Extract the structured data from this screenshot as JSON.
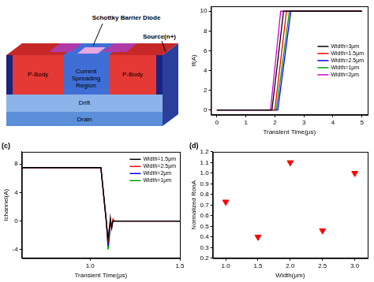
{
  "diagram": {
    "callouts": [
      "Schottky Barrier Diode",
      "Source(n+)"
    ],
    "regions": [
      "P-Body",
      "Current Spreading Region",
      "P-Body"
    ],
    "layers": [
      "Drift",
      "Drain"
    ]
  },
  "chart_data": [
    {
      "type": "line",
      "x_label": "Transient Time(μs)",
      "y_label": "If(A)",
      "xlim": [
        -0.2,
        5.2
      ],
      "xticks": [
        0,
        1,
        2,
        3,
        4,
        5
      ],
      "ylim": [
        -0.5,
        10.5
      ],
      "yticks": [
        0,
        2,
        4,
        6,
        8,
        10
      ],
      "grid": false,
      "legend": "center right",
      "series": [
        {
          "name": "Width=3μm",
          "color": "#000000",
          "x": [
            0,
            1.9,
            2.3,
            5
          ],
          "values": [
            0,
            0,
            10,
            10
          ]
        },
        {
          "name": "Width=1.5μm",
          "color": "#ff0000",
          "x": [
            0,
            2.0,
            2.4,
            5
          ],
          "values": [
            0,
            0,
            10,
            10
          ]
        },
        {
          "name": "Width=2.5μm",
          "color": "#0000ff",
          "x": [
            0,
            2.1,
            2.55,
            5
          ],
          "values": [
            0,
            0,
            10,
            10
          ]
        },
        {
          "name": "Width=1μm",
          "color": "#00a000",
          "x": [
            0,
            2.05,
            2.5,
            5
          ],
          "values": [
            0,
            0,
            10,
            10
          ]
        },
        {
          "name": "Width=2μm",
          "color": "#cc00cc",
          "x": [
            0,
            1.85,
            2.2,
            5
          ],
          "values": [
            0,
            0,
            10,
            10
          ]
        }
      ]
    },
    {
      "type": "line",
      "title": "(c)",
      "x_label": "Transient Time(μs)",
      "y_label": "Ichannel(A)",
      "xlim": [
        0.62,
        1.5
      ],
      "xticks": [
        {
          "value": 1,
          "label": "1.0"
        },
        {
          "value": 1.5,
          "label": "1.5"
        }
      ],
      "ylim": [
        -5.2,
        9.7
      ],
      "yticks": [
        -4,
        0,
        4,
        8
      ],
      "grid": false,
      "legend": "upper right",
      "x": [
        0.62,
        1.06,
        1.09,
        1.1,
        1.107,
        1.113,
        1.12,
        1.127,
        1.135,
        1.5
      ],
      "series": [
        {
          "name": "Width=1.5μm",
          "color": "#000000",
          "values": [
            7.5,
            7.5,
            0,
            -2.5,
            -1,
            0.5,
            -1,
            0,
            0,
            0
          ]
        },
        {
          "name": "Width=2.5μm",
          "color": "#ff0000",
          "values": [
            7.5,
            7.5,
            0,
            -3,
            -1.5,
            0,
            -1,
            0.3,
            0,
            0
          ]
        },
        {
          "name": "Width=2μm",
          "color": "#0000ff",
          "values": [
            7.5,
            7.5,
            0,
            -3.5,
            -2,
            0,
            -0.8,
            0,
            0,
            0
          ]
        },
        {
          "name": "Width=1μm",
          "color": "#00a000",
          "values": [
            7.5,
            7.5,
            0,
            -4,
            -2.5,
            -0.5,
            -0.5,
            0,
            0,
            0
          ]
        }
      ]
    },
    {
      "type": "scatter",
      "title": "(d)",
      "x_label": "Width(μm)",
      "y_label": "Normalized RonA",
      "xlim": [
        0.8,
        3.2
      ],
      "xticks": [
        {
          "value": 1,
          "label": "1.0"
        },
        1.5,
        {
          "value": 2,
          "label": "2.0"
        },
        2.5,
        {
          "value": 3,
          "label": "3.0"
        }
      ],
      "ylim": [
        0.2,
        1.2
      ],
      "yticks": [
        0.2,
        0.3,
        0.4,
        0.5,
        0.6,
        0.7,
        0.8,
        0.9,
        {
          "value": 1,
          "label": "1.0"
        },
        1.1,
        1.2
      ],
      "grid": false,
      "marker": "triangle_down",
      "color": "#ff0000",
      "x": [
        1,
        1.5,
        2,
        2.5,
        3
      ],
      "values": [
        0.73,
        0.4,
        1.1,
        0.46,
        1.0
      ]
    }
  ]
}
